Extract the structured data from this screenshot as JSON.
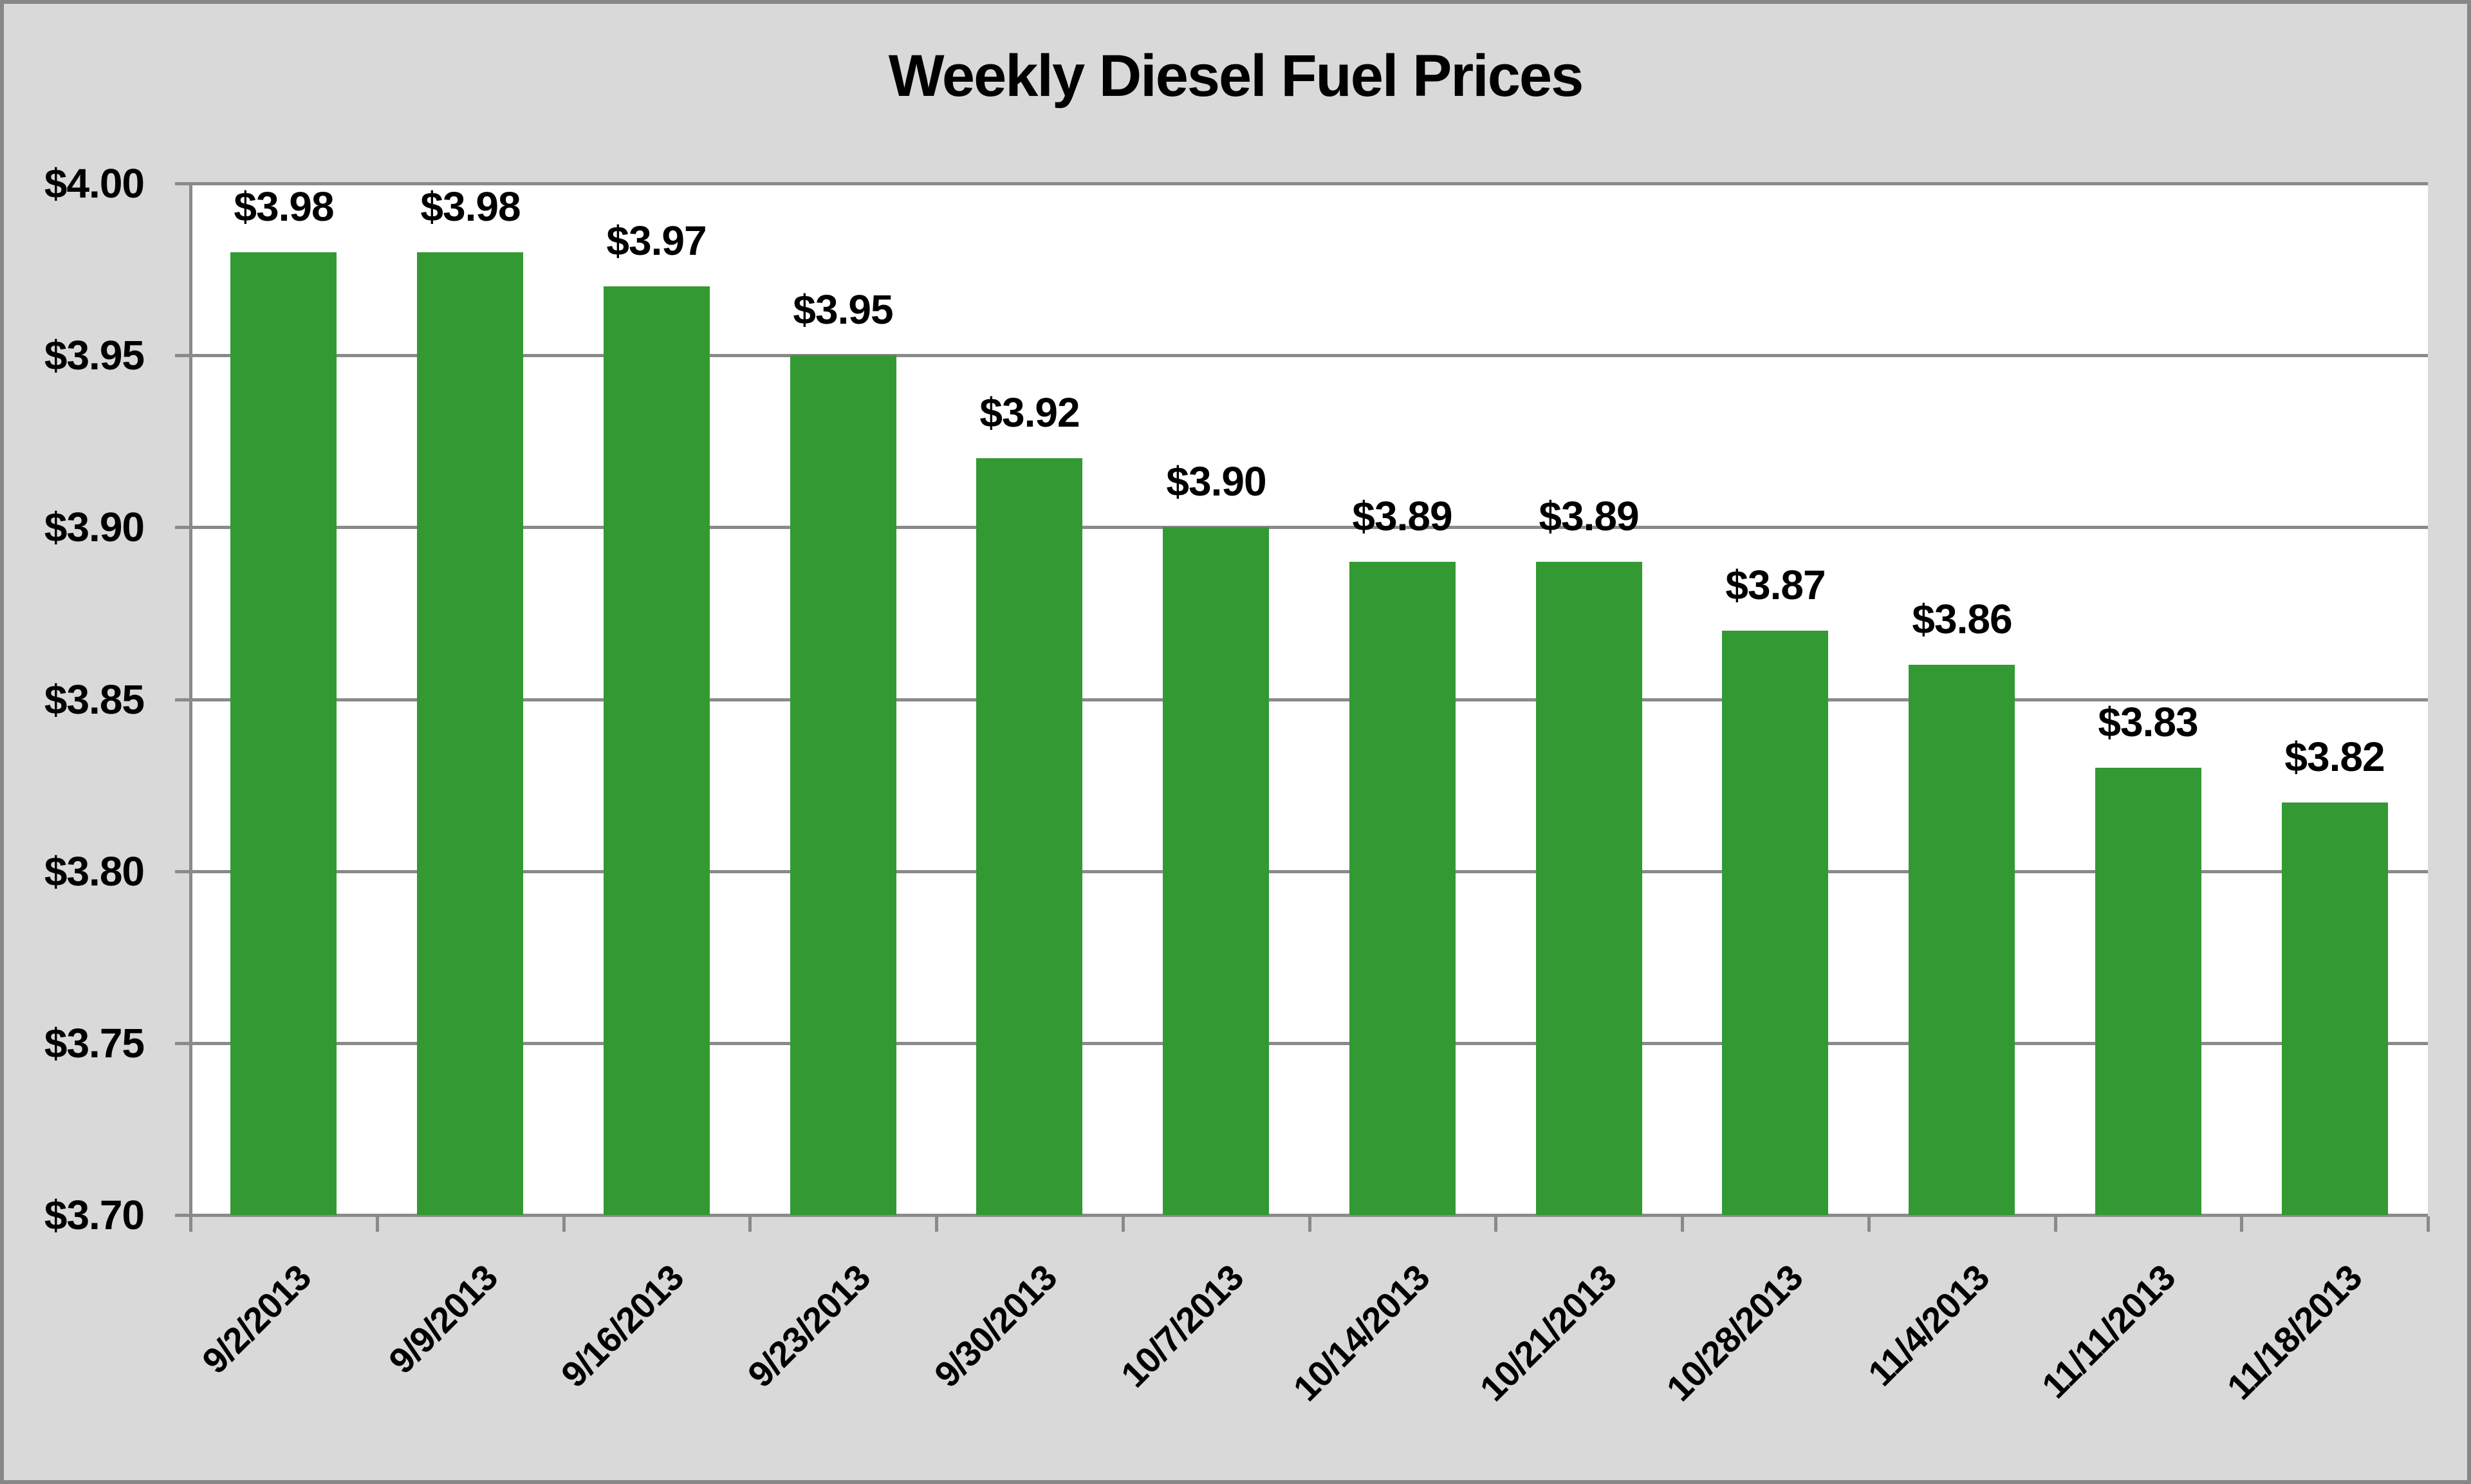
{
  "figure": {
    "outer_background": "#d9d9d9",
    "frame_border_color": "#878787",
    "plot_background": "#ffffff",
    "gridline_color": "#8a8a8a",
    "text_color": "#000000"
  },
  "chart_data": {
    "type": "bar",
    "title": "Weekly Diesel Fuel Prices",
    "categories": [
      "9/2/2013",
      "9/9/2013",
      "9/16/2013",
      "9/23/2013",
      "9/30/2013",
      "10/7/2013",
      "10/14/2013",
      "10/21/2013",
      "10/28/2013",
      "11/4/2013",
      "11/11/2013",
      "11/18/2013"
    ],
    "values": [
      3.98,
      3.98,
      3.97,
      3.95,
      3.92,
      3.9,
      3.89,
      3.89,
      3.87,
      3.86,
      3.83,
      3.82
    ],
    "bar_labels": [
      "$3.98",
      "$3.98",
      "$3.97",
      "$3.95",
      "$3.92",
      "$3.90",
      "$3.89",
      "$3.89",
      "$3.87",
      "$3.86",
      "$3.83",
      "$3.82"
    ],
    "xlabel": "",
    "ylabel": "",
    "ylim": [
      3.7,
      4.0
    ],
    "y_tick_step": 0.05,
    "y_tick_labels": [
      "$4.00",
      "$3.95",
      "$3.90",
      "$3.85",
      "$3.80",
      "$3.75",
      "$3.70"
    ],
    "y_tick_values": [
      4.0,
      3.95,
      3.9,
      3.85,
      3.8,
      3.75,
      3.7
    ],
    "grid": true,
    "legend": null,
    "bar_color": "#339933"
  }
}
